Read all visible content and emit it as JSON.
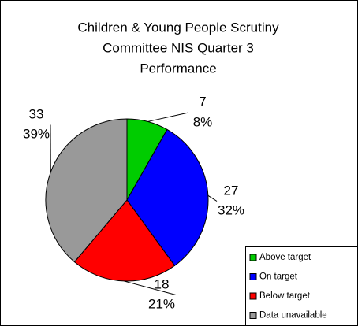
{
  "chart_data": {
    "type": "pie",
    "title": [
      "Children & Young People Scrutiny",
      "Committee NIS Quarter 3",
      "Performance"
    ],
    "categories": [
      "Above target",
      "On target",
      "Below target",
      "Data unavailable"
    ],
    "values": [
      7,
      27,
      18,
      33
    ],
    "percent_labels": [
      "8%",
      "32%",
      "21%",
      "39%"
    ],
    "colors": [
      "#00cc00",
      "#0000ff",
      "#ff0000",
      "#999999"
    ],
    "legend": "bottom-right"
  }
}
